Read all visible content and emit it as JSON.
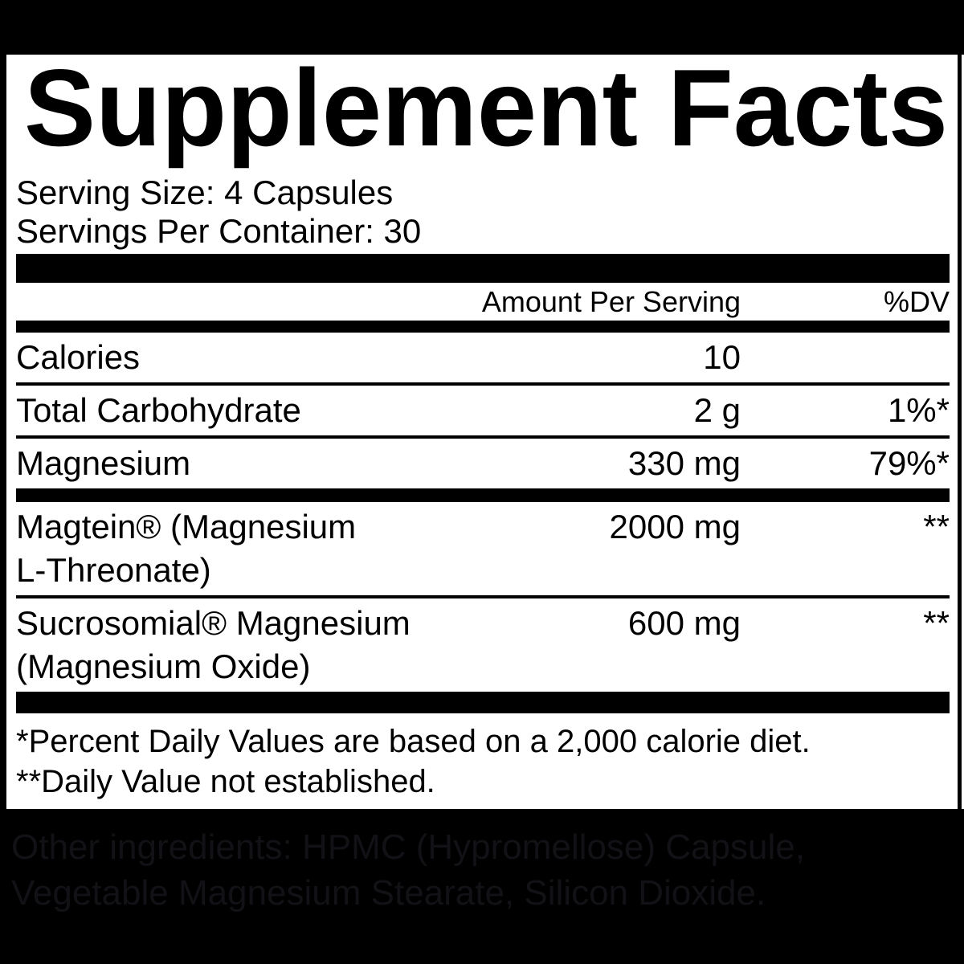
{
  "colors": {
    "background": "#000000",
    "panel": "#ffffff",
    "text": "#000000",
    "faint_text": "#111116"
  },
  "panel": {
    "title": "Supplement Facts",
    "serving_size": "Serving Size: 4 Capsules",
    "servings_per_container": "Servings Per Container: 30",
    "header": {
      "amount": "Amount Per Serving",
      "dv": "%DV"
    },
    "rows": [
      {
        "name": "Calories",
        "amount": "10",
        "dv": ""
      },
      {
        "name": "Total Carbohydrate",
        "amount": "2 g",
        "dv": "1%*"
      },
      {
        "name": "Magnesium",
        "amount": "330 mg",
        "dv": "79%*"
      },
      {
        "name": "Magtein® (Magnesium\nL-Threonate)",
        "amount": "2000 mg",
        "dv": "**"
      },
      {
        "name": "Sucrosomial® Magnesium\n(Magnesium Oxide)",
        "amount": "600 mg",
        "dv": "**"
      }
    ],
    "footnotes": [
      "*Percent Daily Values are based on a 2,000 calorie diet.",
      "**Daily Value not established."
    ]
  },
  "other_ingredients": {
    "line1": "Other ingredients: HPMC (Hypromellose) Capsule,",
    "line2": "Vegetable Magnesium Stearate, Silicon Dioxide."
  }
}
